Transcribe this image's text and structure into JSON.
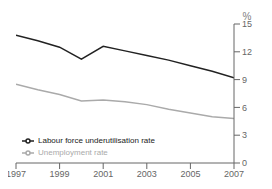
{
  "chart_data": {
    "type": "line",
    "x": [
      1997,
      1998,
      1999,
      2000,
      2001,
      2002,
      2003,
      2004,
      2005,
      2006,
      2007
    ],
    "series": [
      {
        "name": "Labour force underutilisation rate",
        "color": "#222222",
        "values": [
          13.8,
          13.2,
          12.5,
          11.2,
          12.6,
          12.1,
          11.6,
          11.1,
          10.5,
          9.9,
          9.2
        ]
      },
      {
        "name": "Unemployment rate",
        "color": "#aaaaaa",
        "values": [
          8.5,
          7.9,
          7.4,
          6.7,
          6.8,
          6.6,
          6.3,
          5.8,
          5.4,
          5.0,
          4.8
        ]
      }
    ],
    "xlim": [
      1997,
      2007
    ],
    "xticks": [
      1997,
      1999,
      2001,
      2003,
      2005,
      2007
    ],
    "ylim": [
      0,
      15
    ],
    "yticks": [
      0,
      3,
      6,
      9,
      12,
      15
    ],
    "ylabel": "%",
    "legend": "lower left",
    "grid": false
  }
}
